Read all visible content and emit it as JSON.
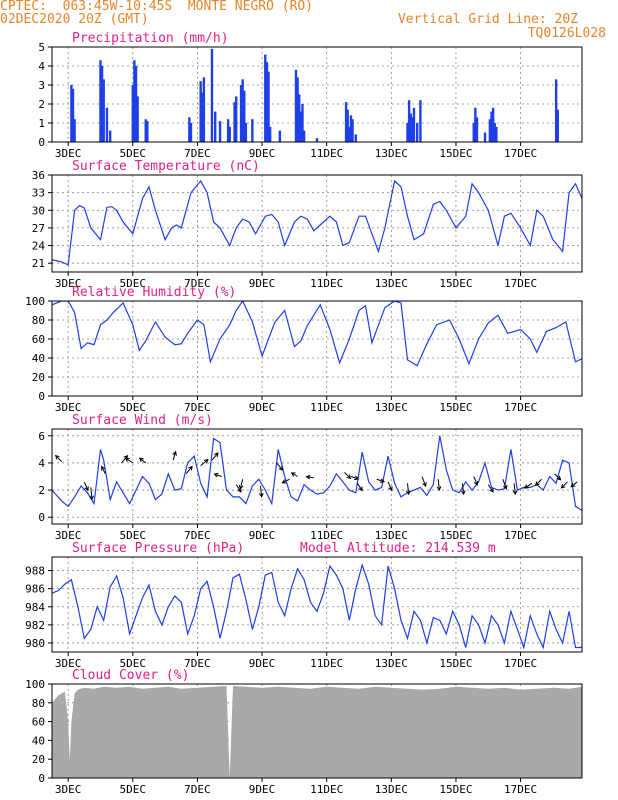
{
  "header": {
    "line1_left": "CPTEC:  063:45W-10:45S  MONTE NEGRO (RO)",
    "line2_left": "02DEC2020 20Z (GMT)",
    "line1_right": "Vertical Grid Line: 20Z",
    "line2_right": "TQ0126L028"
  },
  "colors": {
    "header": "#e8842a",
    "title": "#e0218a",
    "line": "#1f3fe8",
    "bar": "#1f3fe8",
    "cloud": "#a9a9a9",
    "grid": "#888888"
  },
  "chart_data": [
    {
      "type": "bar",
      "title": "Precipitation (mm/h)",
      "ylim": [
        0,
        5
      ],
      "yticks": [
        0,
        1,
        2,
        3,
        4,
        5
      ],
      "xticks": [
        "3DEC",
        "5DEC",
        "7DEC",
        "9DEC",
        "11DEC",
        "13DEC",
        "15DEC",
        "17DEC"
      ],
      "bars": [
        {
          "t": 0.6,
          "v": 3.0
        },
        {
          "t": 0.65,
          "v": 2.8
        },
        {
          "t": 0.7,
          "v": 1.2
        },
        {
          "t": 1.5,
          "v": 4.3
        },
        {
          "t": 1.55,
          "v": 4.0
        },
        {
          "t": 1.6,
          "v": 3.3
        },
        {
          "t": 1.7,
          "v": 1.8
        },
        {
          "t": 1.8,
          "v": 0.6
        },
        {
          "t": 2.5,
          "v": 3.0
        },
        {
          "t": 2.55,
          "v": 4.3
        },
        {
          "t": 2.6,
          "v": 4.0
        },
        {
          "t": 2.65,
          "v": 2.4
        },
        {
          "t": 2.9,
          "v": 1.2
        },
        {
          "t": 2.95,
          "v": 1.1
        },
        {
          "t": 4.25,
          "v": 1.3
        },
        {
          "t": 4.3,
          "v": 1.0
        },
        {
          "t": 4.6,
          "v": 3.2
        },
        {
          "t": 4.65,
          "v": 2.6
        },
        {
          "t": 4.7,
          "v": 3.4
        },
        {
          "t": 4.95,
          "v": 4.9
        },
        {
          "t": 5.05,
          "v": 1.6
        },
        {
          "t": 5.2,
          "v": 1.1
        },
        {
          "t": 5.45,
          "v": 1.2
        },
        {
          "t": 5.5,
          "v": 0.8
        },
        {
          "t": 5.65,
          "v": 2.1
        },
        {
          "t": 5.7,
          "v": 2.4
        },
        {
          "t": 5.85,
          "v": 3.0
        },
        {
          "t": 5.9,
          "v": 3.3
        },
        {
          "t": 5.95,
          "v": 2.7
        },
        {
          "t": 6.0,
          "v": 1.0
        },
        {
          "t": 6.2,
          "v": 1.2
        },
        {
          "t": 6.6,
          "v": 4.6
        },
        {
          "t": 6.65,
          "v": 4.2
        },
        {
          "t": 6.7,
          "v": 3.7
        },
        {
          "t": 6.75,
          "v": 0.8
        },
        {
          "t": 7.05,
          "v": 0.6
        },
        {
          "t": 7.55,
          "v": 3.8
        },
        {
          "t": 7.6,
          "v": 3.4
        },
        {
          "t": 7.65,
          "v": 2.5
        },
        {
          "t": 7.7,
          "v": 1.6
        },
        {
          "t": 7.75,
          "v": 2.0
        },
        {
          "t": 7.8,
          "v": 0.6
        },
        {
          "t": 8.2,
          "v": 0.2
        },
        {
          "t": 9.1,
          "v": 2.1
        },
        {
          "t": 9.15,
          "v": 1.7
        },
        {
          "t": 9.2,
          "v": 0.8
        },
        {
          "t": 9.25,
          "v": 1.4
        },
        {
          "t": 9.3,
          "v": 1.2
        },
        {
          "t": 9.4,
          "v": 0.4
        },
        {
          "t": 11.0,
          "v": 1.0
        },
        {
          "t": 11.05,
          "v": 2.2
        },
        {
          "t": 11.1,
          "v": 1.5
        },
        {
          "t": 11.15,
          "v": 1.3
        },
        {
          "t": 11.2,
          "v": 1.8
        },
        {
          "t": 11.3,
          "v": 1.0
        },
        {
          "t": 11.4,
          "v": 2.2
        },
        {
          "t": 13.05,
          "v": 1.0
        },
        {
          "t": 13.1,
          "v": 1.8
        },
        {
          "t": 13.15,
          "v": 1.3
        },
        {
          "t": 13.4,
          "v": 0.5
        },
        {
          "t": 13.55,
          "v": 1.2
        },
        {
          "t": 13.6,
          "v": 1.6
        },
        {
          "t": 13.65,
          "v": 1.8
        },
        {
          "t": 13.7,
          "v": 1.0
        },
        {
          "t": 13.75,
          "v": 0.8
        },
        {
          "t": 15.6,
          "v": 3.3
        },
        {
          "t": 15.65,
          "v": 1.7
        }
      ]
    },
    {
      "type": "line",
      "title": "Surface Temperature (nC)",
      "ylim": [
        19.5,
        36
      ],
      "yticks": [
        21,
        24,
        27,
        30,
        33,
        36
      ],
      "xticks": [
        "3DEC",
        "5DEC",
        "7DEC",
        "9DEC",
        "11DEC",
        "13DEC",
        "15DEC",
        "17DEC"
      ],
      "x": [
        0,
        0.3,
        0.5,
        0.7,
        0.85,
        1,
        1.2,
        1.5,
        1.7,
        1.85,
        2,
        2.2,
        2.5,
        2.8,
        3,
        3.2,
        3.5,
        3.7,
        3.85,
        4,
        4.3,
        4.6,
        4.8,
        5,
        5.2,
        5.5,
        5.7,
        5.9,
        6.1,
        6.3,
        6.6,
        6.8,
        7,
        7.2,
        7.5,
        7.7,
        7.9,
        8.1,
        8.3,
        8.6,
        8.8,
        9,
        9.2,
        9.5,
        9.7,
        9.9,
        10.1,
        10.3,
        10.6,
        10.8,
        11,
        11.2,
        11.5,
        11.8,
        12,
        12.2,
        12.5,
        12.8,
        13,
        13.2,
        13.5,
        13.8,
        14,
        14.2,
        14.5,
        14.8,
        15,
        15.2,
        15.5,
        15.8,
        16,
        16.2,
        16.4
      ],
      "y": [
        21.6,
        21.2,
        20.7,
        30.0,
        30.8,
        30.4,
        27.0,
        25.0,
        30.5,
        30.6,
        30.0,
        28.0,
        26.0,
        32.0,
        34.0,
        30.0,
        25.0,
        27.0,
        27.5,
        27.0,
        33.0,
        35.0,
        33.0,
        28.0,
        27.0,
        24.0,
        27.0,
        28.5,
        28.0,
        26.0,
        29.0,
        29.3,
        28.0,
        24.0,
        28.0,
        29.0,
        28.5,
        26.5,
        27.5,
        29.0,
        28.0,
        24.0,
        24.5,
        29.0,
        29.0,
        26.0,
        23.0,
        27.0,
        35.0,
        34.0,
        29.0,
        25.0,
        26.0,
        31.0,
        31.5,
        30.0,
        27.0,
        29.0,
        34.5,
        33.0,
        30.0,
        24.0,
        29.0,
        29.5,
        27.0,
        24.0,
        30.0,
        29.0,
        25.0,
        23.0,
        33.0,
        34.5,
        32.0
      ]
    },
    {
      "type": "line",
      "title": "Relative Humidity (%)",
      "ylim": [
        0,
        100
      ],
      "yticks": [
        0,
        20,
        40,
        60,
        80,
        100
      ],
      "xticks": [
        "3DEC",
        "5DEC",
        "7DEC",
        "9DEC",
        "11DEC",
        "13DEC",
        "15DEC",
        "17DEC"
      ],
      "x": [
        0,
        0.3,
        0.5,
        0.7,
        0.9,
        1.1,
        1.3,
        1.5,
        1.7,
        1.9,
        2.2,
        2.5,
        2.7,
        2.9,
        3.2,
        3.5,
        3.8,
        4,
        4.2,
        4.5,
        4.7,
        4.9,
        5.2,
        5.5,
        5.7,
        5.9,
        6.2,
        6.5,
        6.7,
        6.9,
        7.2,
        7.5,
        7.7,
        7.9,
        8.3,
        8.6,
        8.9,
        9.2,
        9.5,
        9.7,
        9.9,
        10.3,
        10.6,
        10.8,
        11,
        11.3,
        11.6,
        11.9,
        12.3,
        12.6,
        12.9,
        13.2,
        13.5,
        13.8,
        14.1,
        14.5,
        14.8,
        15,
        15.3,
        15.6,
        15.9,
        16.2,
        16.4
      ],
      "y": [
        96,
        100,
        100,
        88,
        50,
        56,
        54,
        75,
        80,
        88,
        98,
        75,
        48,
        58,
        78,
        62,
        54,
        55,
        66,
        80,
        75,
        36,
        60,
        75,
        90,
        100,
        78,
        42,
        60,
        78,
        90,
        52,
        58,
        74,
        96,
        70,
        35,
        60,
        90,
        95,
        56,
        93,
        100,
        98,
        38,
        32,
        55,
        75,
        80,
        60,
        34,
        60,
        77,
        85,
        66,
        70,
        60,
        46,
        68,
        72,
        78,
        36,
        39
      ]
    },
    {
      "type": "line",
      "title": "Surface Wind (m/s)",
      "ylim": [
        -0.5,
        6.5
      ],
      "yticks": [
        0,
        2,
        4,
        6
      ],
      "xticks": [
        "3DEC",
        "5DEC",
        "7DEC",
        "9DEC",
        "11DEC",
        "13DEC",
        "15DEC",
        "17DEC"
      ],
      "x": [
        0,
        0.15,
        0.3,
        0.5,
        0.7,
        0.9,
        1.1,
        1.3,
        1.5,
        1.6,
        1.8,
        2,
        2.2,
        2.4,
        2.6,
        2.8,
        3,
        3.2,
        3.4,
        3.6,
        3.8,
        4,
        4.2,
        4.4,
        4.6,
        4.8,
        5,
        5.2,
        5.4,
        5.6,
        5.8,
        6,
        6.2,
        6.4,
        6.6,
        6.8,
        7,
        7.2,
        7.4,
        7.6,
        7.8,
        8,
        8.2,
        8.4,
        8.6,
        8.8,
        9,
        9.2,
        9.4,
        9.6,
        9.8,
        10,
        10.2,
        10.4,
        10.6,
        10.8,
        11,
        11.2,
        11.4,
        11.6,
        11.8,
        12,
        12.2,
        12.4,
        12.6,
        12.8,
        13,
        13.2,
        13.4,
        13.6,
        13.8,
        14,
        14.2,
        14.4,
        14.6,
        14.8,
        15,
        15.2,
        15.4,
        15.6,
        15.8,
        16,
        16.2,
        16.4
      ],
      "y": [
        2.0,
        1.6,
        1.2,
        0.8,
        1.5,
        2.3,
        1.8,
        1.0,
        5.0,
        4.2,
        1.3,
        2.6,
        1.8,
        1.0,
        2.0,
        3.0,
        2.5,
        1.3,
        1.7,
        3.2,
        2.0,
        2.1,
        4.0,
        4.5,
        2.5,
        1.5,
        5.8,
        5.5,
        2.0,
        1.5,
        1.5,
        1.0,
        2.3,
        2.8,
        2.0,
        1.0,
        5.0,
        3.0,
        1.5,
        1.2,
        2.4,
        2.0,
        1.7,
        1.8,
        2.3,
        3.2,
        2.6,
        2.0,
        1.8,
        4.8,
        2.6,
        2.0,
        2.2,
        4.5,
        2.5,
        1.5,
        1.8,
        2.0,
        2.2,
        1.6,
        2.4,
        6.0,
        3.5,
        2.0,
        1.8,
        2.6,
        2.0,
        2.6,
        4.0,
        2.2,
        2.0,
        2.1,
        5.0,
        2.0,
        2.2,
        2.2,
        2.4,
        2.0,
        3.0,
        2.5,
        4.2,
        4.0,
        0.8,
        0.5
      ],
      "arrows": [
        {
          "t": 0.3,
          "y": 4.1,
          "dx": -0.5,
          "dy": 0.5
        },
        {
          "t": 1.0,
          "y": 2.6,
          "dx": 0.3,
          "dy": -0.7
        },
        {
          "t": 1.2,
          "y": 2.2,
          "dx": 0.1,
          "dy": -1.0
        },
        {
          "t": 1.65,
          "y": 3.2,
          "dx": -0.3,
          "dy": 0.6
        },
        {
          "t": 2.15,
          "y": 4.0,
          "dx": 0.5,
          "dy": 0.6
        },
        {
          "t": 2.5,
          "y": 4.0,
          "dx": -0.6,
          "dy": 0.4
        },
        {
          "t": 2.9,
          "y": 4.0,
          "dx": -0.5,
          "dy": 0.4
        },
        {
          "t": 3.75,
          "y": 4.2,
          "dx": 0.2,
          "dy": 0.7
        },
        {
          "t": 4.15,
          "y": 3.2,
          "dx": 0.5,
          "dy": 0.6
        },
        {
          "t": 4.6,
          "y": 3.8,
          "dx": 0.6,
          "dy": 0.5
        },
        {
          "t": 4.95,
          "y": 4.2,
          "dx": 0.5,
          "dy": 0.6
        },
        {
          "t": 5.25,
          "y": 3.0,
          "dx": -0.6,
          "dy": 0.2
        },
        {
          "t": 5.7,
          "y": 2.4,
          "dx": 0.4,
          "dy": -0.6
        },
        {
          "t": 5.9,
          "y": 2.8,
          "dx": -0.2,
          "dy": -0.8
        },
        {
          "t": 6.45,
          "y": 2.3,
          "dx": 0.1,
          "dy": -0.9
        },
        {
          "t": 6.95,
          "y": 4.0,
          "dx": 0.5,
          "dy": -0.6
        },
        {
          "t": 7.35,
          "y": 2.8,
          "dx": -0.6,
          "dy": -0.3
        },
        {
          "t": 7.6,
          "y": 3.0,
          "dx": -0.5,
          "dy": 0.3
        },
        {
          "t": 8.1,
          "y": 2.9,
          "dx": -0.6,
          "dy": 0.1
        },
        {
          "t": 9.05,
          "y": 3.3,
          "dx": 0.5,
          "dy": -0.5
        },
        {
          "t": 9.25,
          "y": 3.0,
          "dx": 0.6,
          "dy": -0.2
        },
        {
          "t": 9.45,
          "y": 2.5,
          "dx": 0.4,
          "dy": -0.6
        },
        {
          "t": 10.05,
          "y": 2.8,
          "dx": 0.6,
          "dy": -0.2
        },
        {
          "t": 10.4,
          "y": 2.6,
          "dx": 0.3,
          "dy": -0.7
        },
        {
          "t": 11.0,
          "y": 2.5,
          "dx": 0.1,
          "dy": -0.9
        },
        {
          "t": 11.45,
          "y": 3.0,
          "dx": 0.3,
          "dy": -0.8
        },
        {
          "t": 11.95,
          "y": 2.8,
          "dx": 0.1,
          "dy": -0.9
        },
        {
          "t": 12.7,
          "y": 2.5,
          "dx": 0.1,
          "dy": -0.9
        },
        {
          "t": 13.05,
          "y": 3.0,
          "dx": 0.3,
          "dy": -0.7
        },
        {
          "t": 13.5,
          "y": 2.4,
          "dx": 0.4,
          "dy": -0.6
        },
        {
          "t": 13.95,
          "y": 2.8,
          "dx": 0.3,
          "dy": -0.8
        },
        {
          "t": 14.3,
          "y": 2.5,
          "dx": 0.1,
          "dy": -0.9
        },
        {
          "t": 14.85,
          "y": 2.5,
          "dx": -0.6,
          "dy": -0.4
        },
        {
          "t": 15.15,
          "y": 2.8,
          "dx": -0.5,
          "dy": -0.5
        },
        {
          "t": 15.55,
          "y": 3.2,
          "dx": 0.5,
          "dy": -0.5
        },
        {
          "t": 15.95,
          "y": 2.6,
          "dx": -0.5,
          "dy": -0.5
        },
        {
          "t": 16.25,
          "y": 2.6,
          "dx": -0.5,
          "dy": -0.4
        }
      ]
    },
    {
      "type": "line",
      "title": "Surface Pressure (hPa)",
      "subtitle": "Model Altitude: 214.539  m",
      "ylim": [
        979,
        989.5
      ],
      "yticks": [
        980,
        982,
        984,
        986,
        988
      ],
      "xticks": [
        "3DEC",
        "5DEC",
        "7DEC",
        "9DEC",
        "11DEC",
        "13DEC",
        "15DEC",
        "17DEC"
      ],
      "x": [
        0,
        0.2,
        0.4,
        0.6,
        0.8,
        1,
        1.2,
        1.4,
        1.6,
        1.8,
        2,
        2.2,
        2.4,
        2.6,
        2.8,
        3,
        3.2,
        3.4,
        3.6,
        3.8,
        4,
        4.2,
        4.4,
        4.6,
        4.8,
        5,
        5.2,
        5.4,
        5.6,
        5.8,
        6,
        6.2,
        6.4,
        6.6,
        6.8,
        7,
        7.2,
        7.4,
        7.6,
        7.8,
        8,
        8.2,
        8.4,
        8.6,
        8.8,
        9,
        9.2,
        9.4,
        9.6,
        9.8,
        10,
        10.2,
        10.4,
        10.6,
        10.8,
        11,
        11.2,
        11.4,
        11.6,
        11.8,
        12,
        12.2,
        12.4,
        12.6,
        12.8,
        13,
        13.2,
        13.4,
        13.6,
        13.8,
        14,
        14.2,
        14.4,
        14.6,
        14.8,
        15,
        15.2,
        15.4,
        15.6,
        15.8,
        16,
        16.2,
        16.4
      ],
      "y": [
        985.5,
        985.8,
        986.5,
        987.0,
        984.0,
        980.5,
        981.5,
        984.0,
        982.5,
        986.2,
        987.4,
        985.0,
        981.0,
        983.0,
        985.0,
        986.4,
        983.5,
        982.0,
        984.0,
        985.2,
        984.5,
        981.0,
        983.0,
        986.0,
        986.8,
        984.0,
        980.5,
        983.5,
        987.2,
        987.6,
        984.8,
        981.5,
        984.0,
        987.5,
        987.8,
        984.5,
        983.0,
        986.0,
        988.2,
        987.0,
        984.5,
        983.5,
        985.5,
        988.5,
        987.5,
        986.0,
        982.5,
        986.0,
        988.6,
        986.5,
        983.0,
        982.0,
        988.5,
        986.0,
        982.5,
        980.5,
        983.5,
        982.5,
        980.0,
        982.8,
        982.5,
        981.0,
        983.5,
        982.0,
        979.5,
        983.0,
        982.0,
        980.0,
        983.0,
        982.0,
        980.0,
        983.5,
        981.5,
        979.5,
        983.0,
        981.0,
        979.5,
        983.5,
        981.5,
        980.0,
        983.5,
        979.5,
        979.5
      ]
    },
    {
      "type": "area",
      "title": "Cloud Cover (%)",
      "ylim": [
        0,
        100
      ],
      "yticks": [
        0,
        20,
        40,
        60,
        80,
        100
      ],
      "xticks": [
        "3DEC",
        "5DEC",
        "7DEC",
        "9DEC",
        "11DEC",
        "13DEC",
        "15DEC",
        "17DEC"
      ],
      "x": [
        0,
        0.2,
        0.4,
        0.5,
        0.55,
        0.6,
        0.7,
        0.8,
        1,
        1.3,
        1.6,
        2,
        2.4,
        2.8,
        3.2,
        3.6,
        4,
        4.5,
        5,
        5.4,
        5.5,
        5.6,
        6,
        6.5,
        7,
        7.5,
        8,
        8.5,
        9,
        9.5,
        10,
        10.5,
        11,
        11.5,
        12,
        12.5,
        13,
        13.5,
        14,
        14.5,
        15,
        15.5,
        16,
        16.4
      ],
      "y": [
        80,
        88,
        92,
        60,
        18,
        60,
        90,
        94,
        96,
        95,
        97,
        96,
        97,
        95,
        96,
        97,
        95,
        96,
        97,
        98,
        0,
        98,
        97,
        96,
        97,
        96,
        95,
        97,
        96,
        95,
        97,
        96,
        95,
        94,
        95,
        97,
        96,
        95,
        96,
        94,
        95,
        96,
        95,
        97
      ]
    }
  ]
}
